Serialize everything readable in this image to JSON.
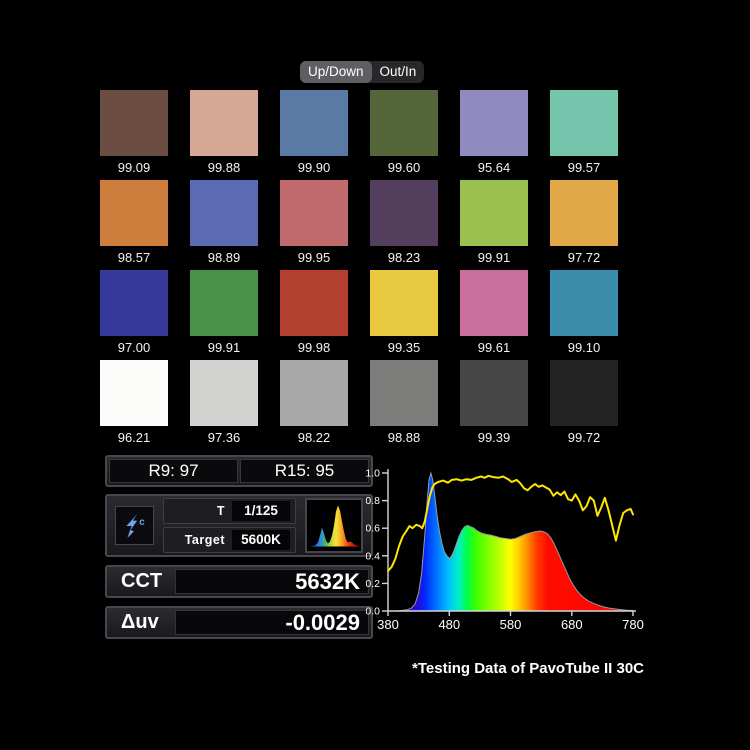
{
  "toggle": {
    "options": [
      {
        "label": "Up/Down",
        "selected": true
      },
      {
        "label": "Out/In",
        "selected": false
      }
    ]
  },
  "swatch_grid": {
    "items": [
      {
        "color": "#6b4e41",
        "value": "99.09"
      },
      {
        "color": "#d7a795",
        "value": "99.88"
      },
      {
        "color": "#5a79a5",
        "value": "99.90"
      },
      {
        "color": "#55663b",
        "value": "99.60"
      },
      {
        "color": "#8f8bc1",
        "value": "95.64"
      },
      {
        "color": "#74c5ac",
        "value": "99.57"
      },
      {
        "color": "#cd7e3d",
        "value": "98.57"
      },
      {
        "color": "#5a6ab4",
        "value": "98.89"
      },
      {
        "color": "#c16a6e",
        "value": "99.95"
      },
      {
        "color": "#533f5d",
        "value": "98.23"
      },
      {
        "color": "#9cc050",
        "value": "99.91"
      },
      {
        "color": "#e0a846",
        "value": "97.72"
      },
      {
        "color": "#37399a",
        "value": "97.00"
      },
      {
        "color": "#4a9148",
        "value": "99.91"
      },
      {
        "color": "#b3402f",
        "value": "99.98"
      },
      {
        "color": "#e8c93f",
        "value": "99.35"
      },
      {
        "color": "#ca6e9e",
        "value": "99.61"
      },
      {
        "color": "#3b8eab",
        "value": "99.10"
      },
      {
        "color": "#fcfcfa",
        "value": "96.21"
      },
      {
        "color": "#d3d3d1",
        "value": "97.36"
      },
      {
        "color": "#a9a9a9",
        "value": "98.22"
      },
      {
        "color": "#7d7d7b",
        "value": "98.88"
      },
      {
        "color": "#474747",
        "value": "99.39"
      },
      {
        "color": "#242424",
        "value": "99.72"
      }
    ]
  },
  "metrics": {
    "r9": "R9: 97",
    "r15": "R15: 95"
  },
  "camera": {
    "flash_icon": "flash-c-icon",
    "t_label": "T",
    "t_value": "1/125",
    "target_label": "Target",
    "target_value": "5600K",
    "spectrum_icon": "spectrum-thumbnail-icon"
  },
  "cct": {
    "label": "CCT",
    "value": "5632K"
  },
  "duv": {
    "label": "Δuv",
    "value": "-0.0029"
  },
  "caption": "*Testing Data of PavoTube II 30C",
  "colors": {
    "background": "#000000",
    "reference_line": "#ffe600",
    "flash_blue": "#6fa8ea",
    "panel_border": "#47474d",
    "axis": "#d6d6d6"
  },
  "chart_data": {
    "type": "area",
    "title": "",
    "xlim": [
      380,
      780
    ],
    "ylim": [
      0,
      1
    ],
    "xticks": [
      380,
      480,
      580,
      680,
      780
    ],
    "yticks": [
      0,
      0.2,
      0.4,
      0.6,
      0.8,
      1
    ],
    "grid": false,
    "legend": false,
    "series": [
      {
        "name": "spd-spectrum-fill",
        "type": "area",
        "edge_color": "#9a9a9a",
        "gradient_stops": [
          {
            "offset": 0.0,
            "color": "#1a0080"
          },
          {
            "offset": 0.13,
            "color": "#2012e0"
          },
          {
            "offset": 0.15,
            "color": "#0028ff"
          },
          {
            "offset": 0.2,
            "color": "#0077ff"
          },
          {
            "offset": 0.25,
            "color": "#00c4ff"
          },
          {
            "offset": 0.29,
            "color": "#00f0c0"
          },
          {
            "offset": 0.325,
            "color": "#00ff40"
          },
          {
            "offset": 0.36,
            "color": "#40ff00"
          },
          {
            "offset": 0.44,
            "color": "#a8ff00"
          },
          {
            "offset": 0.5,
            "color": "#ffff00"
          },
          {
            "offset": 0.54,
            "color": "#ffc400"
          },
          {
            "offset": 0.575,
            "color": "#ff8000"
          },
          {
            "offset": 0.61,
            "color": "#ff3800"
          },
          {
            "offset": 0.65,
            "color": "#ff0c00"
          },
          {
            "offset": 1.0,
            "color": "#ff0000"
          }
        ],
        "x": [
          380,
          395,
          405,
          412,
          418,
          424,
          430,
          435,
          440,
          444,
          447,
          450,
          453,
          456,
          460,
          464,
          468,
          472,
          476,
          480,
          484,
          488,
          492,
          496,
          500,
          505,
          510,
          515,
          520,
          526,
          532,
          540,
          548,
          556,
          564,
          572,
          580,
          588,
          596,
          604,
          612,
          620,
          628,
          634,
          640,
          646,
          652,
          658,
          664,
          670,
          676,
          682,
          688,
          694,
          700,
          708,
          716,
          724,
          732,
          740,
          750,
          760,
          770,
          780
        ],
        "values": [
          0,
          0,
          0.005,
          0.01,
          0.02,
          0.05,
          0.13,
          0.28,
          0.55,
          0.8,
          0.95,
          1.0,
          0.95,
          0.85,
          0.7,
          0.58,
          0.49,
          0.43,
          0.4,
          0.38,
          0.4,
          0.44,
          0.49,
          0.54,
          0.58,
          0.61,
          0.62,
          0.61,
          0.6,
          0.58,
          0.565,
          0.555,
          0.55,
          0.54,
          0.53,
          0.525,
          0.52,
          0.525,
          0.54,
          0.555,
          0.565,
          0.575,
          0.58,
          0.575,
          0.56,
          0.53,
          0.48,
          0.42,
          0.36,
          0.3,
          0.24,
          0.19,
          0.15,
          0.12,
          0.095,
          0.07,
          0.055,
          0.04,
          0.03,
          0.022,
          0.015,
          0.01,
          0.006,
          0.004
        ]
      },
      {
        "name": "reference-curve",
        "type": "line",
        "color": "#ffe600",
        "x": [
          380,
          386,
          392,
          398,
          404,
          410,
          415,
          420,
          426,
          432,
          436,
          440,
          444,
          448,
          452,
          456,
          462,
          470,
          478,
          484,
          492,
          500,
          508,
          516,
          524,
          532,
          538,
          544,
          552,
          560,
          568,
          576,
          582,
          590,
          596,
          602,
          608,
          614,
          620,
          626,
          632,
          638,
          644,
          650,
          656,
          662,
          668,
          674,
          680,
          686,
          692,
          698,
          704,
          710,
          716,
          722,
          728,
          734,
          740,
          746,
          752,
          758,
          764,
          770,
          776,
          780
        ],
        "values": [
          0.29,
          0.32,
          0.38,
          0.47,
          0.54,
          0.58,
          0.615,
          0.6,
          0.625,
          0.615,
          0.6,
          0.65,
          0.74,
          0.83,
          0.89,
          0.92,
          0.935,
          0.945,
          0.93,
          0.95,
          0.955,
          0.945,
          0.955,
          0.95,
          0.965,
          0.975,
          0.965,
          0.98,
          0.97,
          0.965,
          0.975,
          0.955,
          0.935,
          0.95,
          0.925,
          0.89,
          0.875,
          0.9,
          0.92,
          0.9,
          0.91,
          0.895,
          0.88,
          0.835,
          0.86,
          0.84,
          0.865,
          0.81,
          0.8,
          0.845,
          0.8,
          0.73,
          0.76,
          0.825,
          0.8,
          0.69,
          0.75,
          0.82,
          0.73,
          0.62,
          0.51,
          0.62,
          0.71,
          0.73,
          0.74,
          0.7
        ]
      }
    ]
  }
}
